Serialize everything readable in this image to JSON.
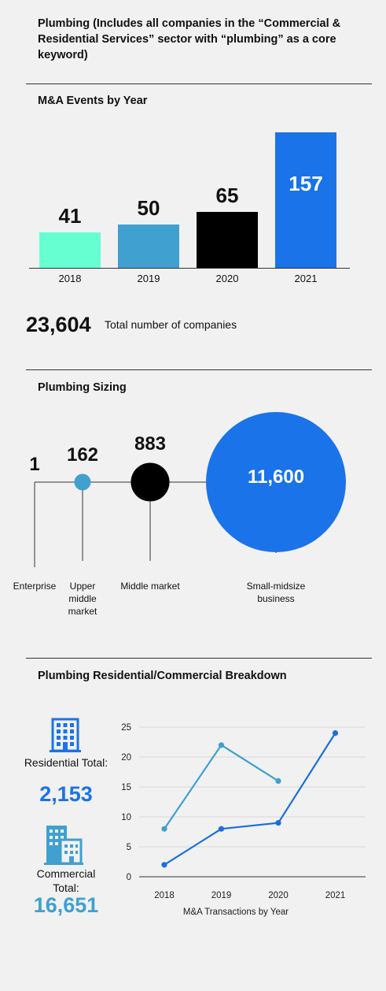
{
  "page": {
    "title": "Plumbing (Includes all companies in the “Commercial & Residential Services” sector with “plumbing” as a core keyword)"
  },
  "ma_section": {
    "heading": "M&A Events by Year",
    "total_number": "23,604",
    "total_label": "Total number of companies"
  },
  "sizing_section": {
    "heading": "Plumbing Sizing"
  },
  "breakdown_section": {
    "heading": "Plumbing Residential/Commercial Breakdown",
    "residential_label": "Residential Total:",
    "residential_total": "2,153",
    "commercial_label": "Commercial Total:",
    "commercial_total": "16,651",
    "residential_icon": "building-icon",
    "commercial_icon": "office-buildings-icon"
  },
  "chart_data": [
    {
      "type": "bar",
      "title": "M&A Events by Year",
      "categories": [
        "2018",
        "2019",
        "2020",
        "2021"
      ],
      "values": [
        41,
        50,
        65,
        157
      ],
      "value_labels": [
        "41",
        "50",
        "65",
        "157"
      ],
      "colors": [
        "#66ffd2",
        "#40a0d0",
        "#000000",
        "#1a73e8"
      ],
      "ylim": [
        0,
        157
      ]
    },
    {
      "type": "scatter",
      "title": "Plumbing Sizing",
      "categories": [
        "Enterprise",
        "Upper middle market",
        "Middle market",
        "Small-midsize business"
      ],
      "values": [
        1,
        162,
        883,
        11600
      ],
      "value_labels": [
        "1",
        "162",
        "883",
        "11,600"
      ],
      "colors": [
        "#000000",
        "#40a0d0",
        "#000000",
        "#1a73e8"
      ]
    },
    {
      "type": "line",
      "title": "Plumbing Residential/Commercial Breakdown",
      "x": [
        "2018",
        "2019",
        "2020",
        "2021"
      ],
      "xlabel": "M&A Transactions by Year",
      "ylabel": "",
      "ylim": [
        0,
        25
      ],
      "yticks": [
        0,
        5,
        10,
        15,
        20,
        25
      ],
      "grid": true,
      "series": [
        {
          "values": [
            8,
            22,
            16,
            null
          ],
          "color": "#40a0d0"
        },
        {
          "values": [
            2,
            8,
            9,
            24
          ],
          "color": "#1a6fe0"
        }
      ]
    }
  ]
}
